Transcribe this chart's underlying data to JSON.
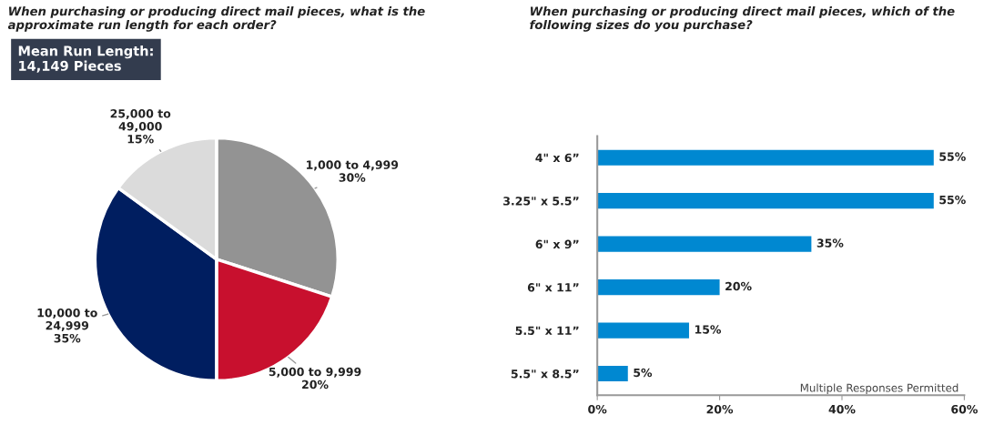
{
  "chart_data": [
    {
      "type": "pie",
      "title": "When purchasing or producing direct mail pieces, what is the\napproximate run length for each order?",
      "categories": [
        "1,000 to 4,999",
        "5,000 to 9,999",
        "10,000 to\n24,999",
        "25,000 to\n49,000"
      ],
      "values": [
        30,
        20,
        35,
        15
      ],
      "colors": [
        "#939393",
        "#c8102e",
        "#001e60",
        "#dbdbdb"
      ],
      "value_labels": [
        "30%",
        "20%",
        "35%",
        "15%"
      ],
      "annotations": [
        "Mean Run Length:\n14,149 Pieces"
      ]
    },
    {
      "type": "bar",
      "orientation": "horizontal",
      "title": "When purchasing or producing direct mail pieces, which of the\nfollowing sizes do you purchase?",
      "categories": [
        "4\" x 6”",
        "3.25\" x 5.5”",
        "6\" x 9”",
        "6\" x 11”",
        "5.5\" x 11”",
        "5.5\" x 8.5”"
      ],
      "values": [
        55,
        55,
        35,
        20,
        15,
        5
      ],
      "color": "#0088d1",
      "value_labels": [
        "55%",
        "55%",
        "35%",
        "20%",
        "15%",
        "5%"
      ],
      "xlim": [
        0,
        60
      ],
      "xticks": [
        {
          "value": 0,
          "label": "0%"
        },
        {
          "value": 20,
          "label": "20%"
        },
        {
          "value": 40,
          "label": "40%"
        },
        {
          "value": 60,
          "label": "60%"
        }
      ],
      "annotations": [
        "Multiple Responses Permitted"
      ]
    }
  ]
}
